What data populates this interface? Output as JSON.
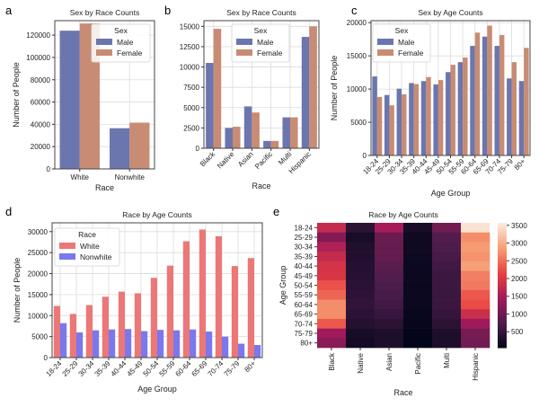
{
  "panel_labels": [
    "a",
    "b",
    "c",
    "d",
    "e"
  ],
  "colors": {
    "male": "#6b76ae",
    "female": "#c88b73",
    "white": "#ec7777",
    "nonwhite": "#7a78ec",
    "grid": "#dcdcdc",
    "frame": "#444444"
  },
  "chart_data": [
    {
      "panel": "a",
      "type": "bar",
      "title": "Sex by Race Counts",
      "xlabel": "Race",
      "ylabel": "Number of People",
      "categories": [
        "White",
        "Nonwhite"
      ],
      "series": [
        {
          "name": "Male",
          "values": [
            124000,
            36500
          ]
        },
        {
          "name": "Female",
          "values": [
            130500,
            41500
          ]
        }
      ],
      "ylim": [
        0,
        133000
      ],
      "yticks": [
        0,
        20000,
        40000,
        60000,
        80000,
        100000,
        120000
      ],
      "legend_title": "Sex",
      "legend": "top-right",
      "grid": true
    },
    {
      "panel": "b",
      "type": "bar",
      "title": "Sex by Race Counts",
      "xlabel": "Race",
      "ylabel": "",
      "categories": [
        "Black",
        "Native",
        "Asian",
        "Pacific",
        "Multi",
        "Hispanic"
      ],
      "series": [
        {
          "name": "Male",
          "values": [
            10500,
            2500,
            5150,
            900,
            3800,
            13700
          ]
        },
        {
          "name": "Female",
          "values": [
            14700,
            2650,
            4400,
            900,
            3800,
            15000
          ]
        }
      ],
      "ylim": [
        0,
        15700
      ],
      "yticks": [
        0,
        2500,
        5000,
        7500,
        10000,
        12500,
        15000
      ],
      "legend_title": "Sex",
      "legend": "top-center",
      "grid": true
    },
    {
      "panel": "c",
      "type": "bar",
      "title": "Sex by Age Counts",
      "xlabel": "Age Group",
      "ylabel": "Number of People",
      "categories": [
        "18-24",
        "25-29",
        "30-34",
        "35-39",
        "40-44",
        "45-49",
        "50-54",
        "55-59",
        "60-64",
        "65-69",
        "70-74",
        "75-79",
        "80+"
      ],
      "series": [
        {
          "name": "Male",
          "values": [
            11900,
            9100,
            10050,
            10900,
            11200,
            10700,
            12550,
            14050,
            16500,
            17900,
            16500,
            11600,
            11200
          ]
        },
        {
          "name": "Female",
          "values": [
            8800,
            7550,
            9200,
            10750,
            11800,
            11350,
            13650,
            14750,
            18500,
            19550,
            18150,
            14050,
            16200
          ]
        }
      ],
      "ylim": [
        0,
        20300
      ],
      "yticks": [
        0,
        5000,
        10000,
        15000,
        20000
      ],
      "legend_title": "Sex",
      "legend": "top-left",
      "grid": true
    },
    {
      "panel": "d",
      "type": "bar",
      "title": "Race by Age Counts",
      "xlabel": "Age Group",
      "ylabel": "Number of People",
      "categories": [
        "18-24",
        "25-29",
        "30-34",
        "35-39",
        "40-44",
        "45-49",
        "50-54",
        "55-59",
        "60-64",
        "65-69",
        "70-74",
        "75-79",
        "80+"
      ],
      "series": [
        {
          "name": "White",
          "values": [
            12300,
            10400,
            12500,
            14500,
            15700,
            15300,
            19000,
            21900,
            27700,
            30500,
            28900,
            21800,
            23700
          ]
        },
        {
          "name": "Nonwhite",
          "values": [
            8200,
            6000,
            6500,
            6700,
            6800,
            6300,
            6600,
            6500,
            6700,
            6200,
            5000,
            3300,
            3000
          ]
        }
      ],
      "ylim": [
        0,
        32100
      ],
      "yticks": [
        0,
        5000,
        10000,
        15000,
        20000,
        25000,
        30000
      ],
      "legend_title": "Race",
      "legend": "top-left",
      "grid": true
    },
    {
      "panel": "e",
      "type": "heatmap",
      "title": "Race by Age Counts",
      "xlabel": "Race",
      "ylabel": "Age Group",
      "x": [
        "Black",
        "Native",
        "Asian",
        "Pacific",
        "Multi",
        "Hispanic"
      ],
      "y": [
        "18-24",
        "25-29",
        "30-34",
        "35-39",
        "40-44",
        "45-49",
        "50-54",
        "55-59",
        "60-64",
        "65-69",
        "70-74",
        "75-79",
        "80+"
      ],
      "values": [
        [
          1800,
          450,
          1500,
          250,
          1050,
          3500
        ],
        [
          1200,
          250,
          1000,
          170,
          800,
          2750
        ],
        [
          1600,
          330,
          950,
          170,
          750,
          2850
        ],
        [
          1800,
          350,
          950,
          160,
          700,
          2800
        ],
        [
          1950,
          380,
          850,
          150,
          650,
          2900
        ],
        [
          2000,
          400,
          800,
          150,
          600,
          2650
        ],
        [
          2300,
          430,
          750,
          140,
          600,
          2600
        ],
        [
          2450,
          470,
          700,
          140,
          580,
          2350
        ],
        [
          2750,
          500,
          650,
          130,
          580,
          2250
        ],
        [
          2750,
          450,
          550,
          110,
          530,
          1850
        ],
        [
          2350,
          380,
          450,
          90,
          450,
          1450
        ],
        [
          1450,
          260,
          300,
          60,
          300,
          1100
        ],
        [
          1250,
          200,
          300,
          50,
          300,
          1050
        ]
      ],
      "colorbar": {
        "min": 50,
        "max": 3570,
        "ticks": [
          500,
          1000,
          1500,
          2000,
          2500,
          3000,
          3500
        ],
        "colormap": "rocket"
      }
    }
  ]
}
